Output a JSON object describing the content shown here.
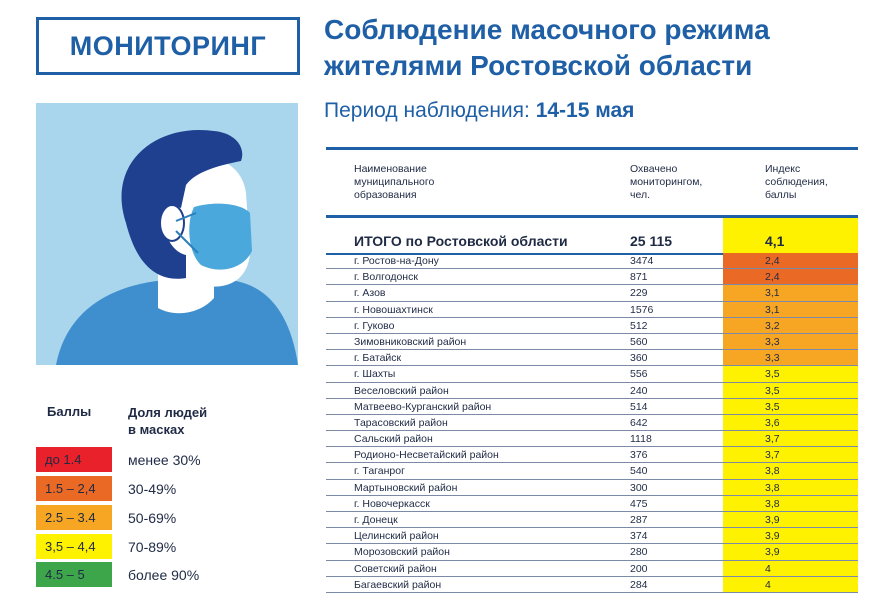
{
  "header": {
    "badge": "МОНИТОРИНГ",
    "title_line1": "Соблюдение масочного режима",
    "title_line2": "жителями Ростовской области",
    "period_label": "Период наблюдения:",
    "period_value": "14-15 мая"
  },
  "legend": {
    "col1": "Баллы",
    "col2_line1": "Доля людей",
    "col2_line2": "в масках",
    "items": [
      {
        "range": "до 1.4",
        "share": "менее 30%",
        "color": "#e8212a"
      },
      {
        "range": "1.5 – 2,4",
        "share": "30-49%",
        "color": "#ea6a25"
      },
      {
        "range": "2.5 – 3.4",
        "share": "50-69%",
        "color": "#f6a623"
      },
      {
        "range": "3,5 – 4,4",
        "share": "70-89%",
        "color": "#fff200"
      },
      {
        "range": "4.5 – 5",
        "share": "более 90%",
        "color": "#3ea64a"
      }
    ]
  },
  "table": {
    "headers": {
      "name": [
        "Наименование",
        "муниципального",
        "образования"
      ],
      "covered": [
        "Охвачено",
        "мониторингом,",
        "чел."
      ],
      "index": [
        "Индекс",
        "соблюдения,",
        "баллы"
      ]
    },
    "total": {
      "name": "ИТОГО по Ростовской области",
      "count": "25 115",
      "index": "4,1",
      "color": "#fff200"
    },
    "rows": [
      {
        "name": "г. Ростов-на-Дону",
        "count": "3474",
        "index": "2,4",
        "color": "#ea6a25"
      },
      {
        "name": "г. Волгодонск",
        "count": "871",
        "index": "2,4",
        "color": "#ea6a25"
      },
      {
        "name": "г. Азов",
        "count": "229",
        "index": "3,1",
        "color": "#f6a623"
      },
      {
        "name": "г. Новошахтинск",
        "count": "1576",
        "index": "3,1",
        "color": "#f6a623"
      },
      {
        "name": "г. Гуково",
        "count": "512",
        "index": "3,2",
        "color": "#f6a623"
      },
      {
        "name": "Зимовниковский район",
        "count": "560",
        "index": "3,3",
        "color": "#f6a623"
      },
      {
        "name": "г. Батайск",
        "count": "360",
        "index": "3,3",
        "color": "#f6a623"
      },
      {
        "name": "г. Шахты",
        "count": "556",
        "index": "3,5",
        "color": "#fff200"
      },
      {
        "name": "Веселовский район",
        "count": "240",
        "index": "3,5",
        "color": "#fff200"
      },
      {
        "name": "Матвеево-Курганский район",
        "count": "514",
        "index": "3,5",
        "color": "#fff200"
      },
      {
        "name": "Тарасовский район",
        "count": "642",
        "index": "3,6",
        "color": "#fff200"
      },
      {
        "name": "Сальский район",
        "count": "1118",
        "index": "3,7",
        "color": "#fff200"
      },
      {
        "name": "Родионо-Несветайский район",
        "count": "376",
        "index": "3,7",
        "color": "#fff200"
      },
      {
        "name": "г. Таганрог",
        "count": "540",
        "index": "3,8",
        "color": "#fff200"
      },
      {
        "name": "Мартыновский район",
        "count": "300",
        "index": "3,8",
        "color": "#fff200"
      },
      {
        "name": "г. Новочеркасск",
        "count": "475",
        "index": "3,8",
        "color": "#fff200"
      },
      {
        "name": "г. Донецк",
        "count": "287",
        "index": "3,9",
        "color": "#fff200"
      },
      {
        "name": "Целинский район",
        "count": "374",
        "index": "3,9",
        "color": "#fff200"
      },
      {
        "name": "Морозовский район",
        "count": "280",
        "index": "3,9",
        "color": "#fff200"
      },
      {
        "name": "Советский район",
        "count": "200",
        "index": "4",
        "color": "#fff200"
      },
      {
        "name": "Багаевский район",
        "count": "284",
        "index": "4",
        "color": "#fff200"
      }
    ]
  }
}
